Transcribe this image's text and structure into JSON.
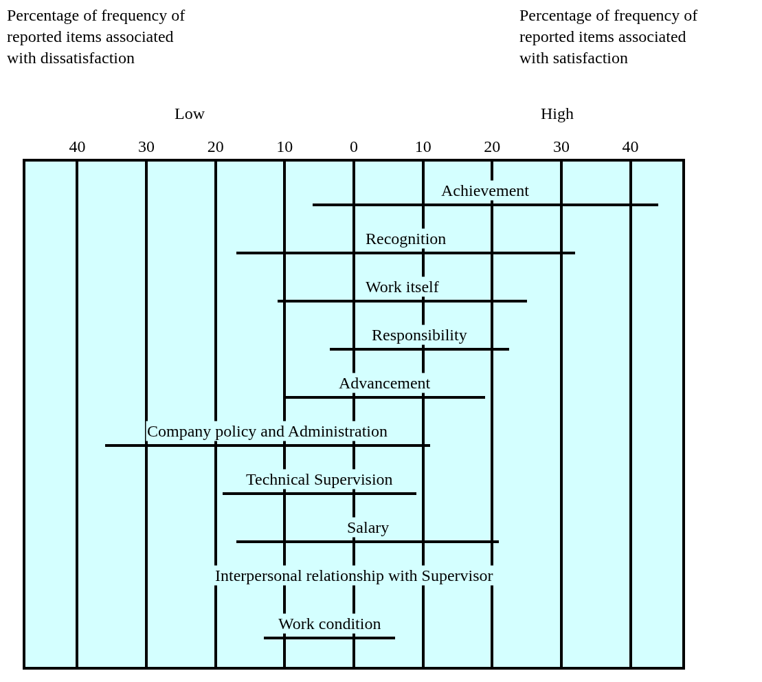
{
  "chart_data": {
    "type": "bar",
    "orientation": "horizontal",
    "categories": [
      "Achievement",
      "Recognition",
      "Work itself",
      "Responsibility",
      "Advancement",
      "Company policy and Administration",
      "Technical Supervision",
      "Salary",
      "Interpersonal relationship with Supervisor",
      "Work condition"
    ],
    "base": [
      -6,
      -17,
      -11,
      -3.5,
      -10,
      -36,
      -19,
      -17,
      null,
      -13
    ],
    "values": [
      50,
      49,
      36,
      26,
      29,
      47,
      28,
      38,
      null,
      19
    ],
    "color": "#000000",
    "xlim": [
      -47.5,
      47.5
    ],
    "xticks": [
      {
        "value": -40,
        "label": "40"
      },
      {
        "value": -30,
        "label": "30"
      },
      {
        "value": -20,
        "label": "20"
      },
      {
        "value": -10,
        "label": "10"
      },
      0,
      10,
      20,
      30,
      40
    ],
    "grid": "x",
    "tick_labels": "x",
    "annotations": [
      {
        "text": "Percentage of frequency of reported items associated with dissatisfaction"
      },
      {
        "text": "Percentage of frequency of reported items associated with satisfaction"
      },
      "Low",
      "High"
    ]
  }
}
